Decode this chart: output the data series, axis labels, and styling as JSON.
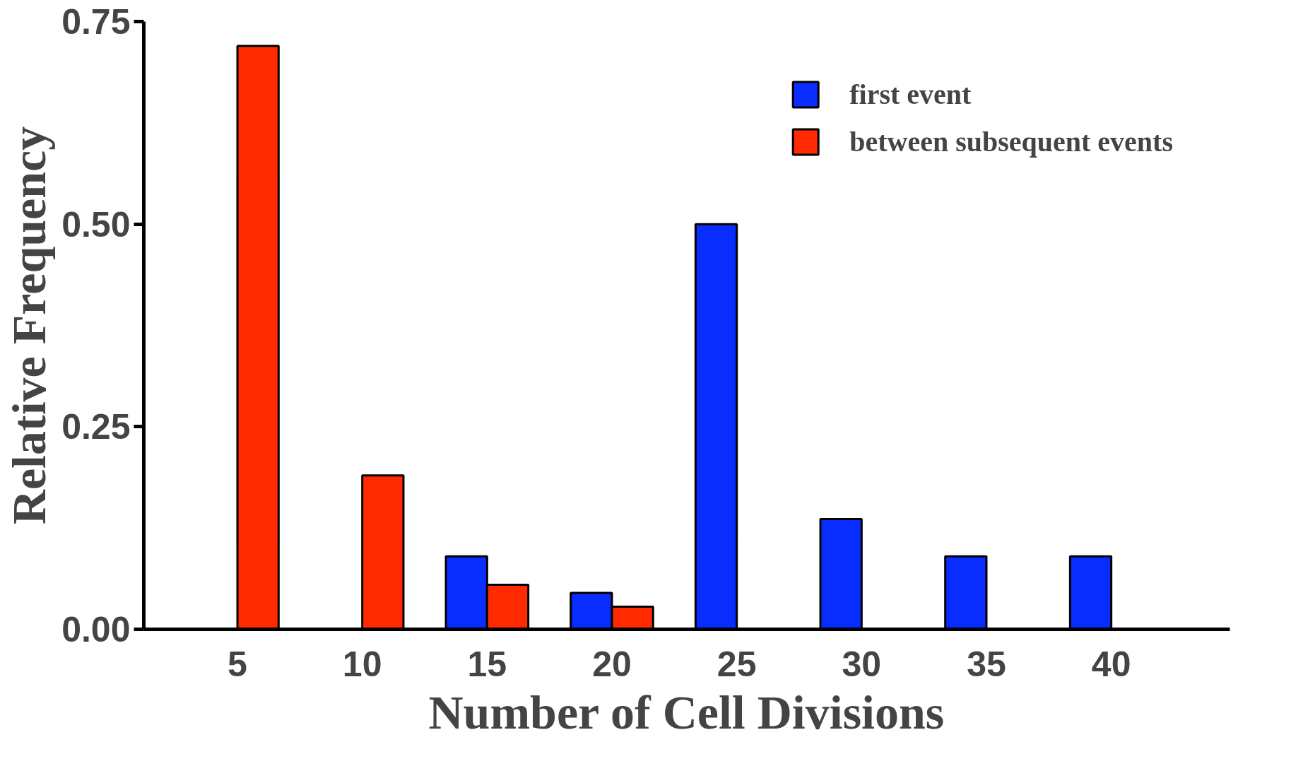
{
  "chart_data": {
    "type": "bar",
    "xlabel": "Number of Cell Divisions",
    "ylabel": "Relative Frequency",
    "categories": [
      "5",
      "10",
      "15",
      "20",
      "25",
      "30",
      "35",
      "40"
    ],
    "series": [
      {
        "name": "first event",
        "color": "#0a2dff",
        "values": [
          null,
          null,
          0.09,
          0.045,
          0.5,
          0.136,
          0.09,
          0.09
        ]
      },
      {
        "name": "between subsequent events",
        "color": "#ff2a00",
        "values": [
          0.72,
          0.19,
          0.055,
          0.028,
          null,
          null,
          null,
          null
        ]
      }
    ],
    "ylim": [
      0,
      0.75
    ],
    "yticks": [
      {
        "value": 0,
        "label": "0.00"
      },
      {
        "value": 0.25,
        "label": "0.25"
      },
      {
        "value": 0.5,
        "label": "0.50"
      },
      {
        "value": 0.75,
        "label": "0.75"
      }
    ],
    "grid": false,
    "legend": "top right"
  }
}
